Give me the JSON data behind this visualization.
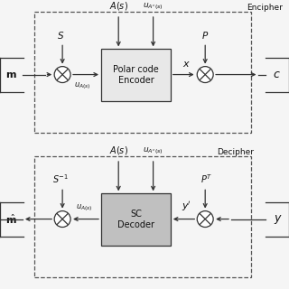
{
  "bg_color": "#f5f5f5",
  "fig_width": 3.2,
  "fig_height": 3.2,
  "dpi": 100,
  "encipher_label": "Encipher",
  "decipher_label": "Decipher",
  "encoder_label": "Polar code\nEncoder",
  "decoder_label": "SC\nDecoder",
  "text_color": "#111111",
  "line_color": "#333333",
  "box_fill": "#e8e8e8",
  "box_fill_dark": "#c0c0c0"
}
